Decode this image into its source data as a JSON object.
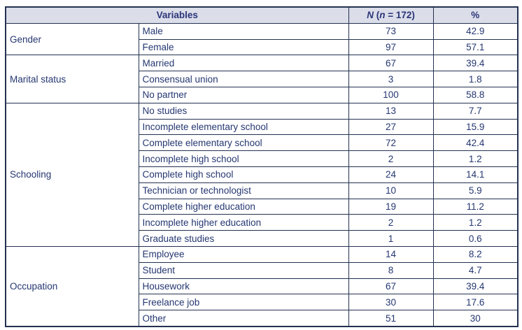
{
  "table": {
    "header": {
      "variables": "Variables",
      "n_symbol": "N",
      "n_paren_open": " (",
      "n_inner_symbol": "n",
      "n_equals_value": " = 172)",
      "pct": "%"
    },
    "groups": [
      {
        "label": "Gender",
        "rows": [
          [
            "Male",
            "73",
            "42.9"
          ],
          [
            "Female",
            "97",
            "57.1"
          ]
        ]
      },
      {
        "label": "Marital status",
        "rows": [
          [
            "Married",
            "67",
            "39.4"
          ],
          [
            "Consensual union",
            "3",
            "1.8"
          ],
          [
            "No partner",
            "100",
            "58.8"
          ]
        ]
      },
      {
        "label": "Schooling",
        "rows": [
          [
            "No studies",
            "13",
            "7.7"
          ],
          [
            "Incomplete elementary school",
            "27",
            "15.9"
          ],
          [
            "Complete elementary school",
            "72",
            "42.4"
          ],
          [
            "Incomplete high school",
            "2",
            "1.2"
          ],
          [
            "Complete high school",
            "24",
            "14.1"
          ],
          [
            "Technician or technologist",
            "10",
            "5.9"
          ],
          [
            "Complete higher education",
            "19",
            "11.2"
          ],
          [
            "Incomplete higher education",
            "2",
            "1.2"
          ],
          [
            "Graduate studies",
            "1",
            "0.6"
          ]
        ]
      },
      {
        "label": "Occupation",
        "rows": [
          [
            "Employee",
            "14",
            "8.2"
          ],
          [
            "Student",
            "8",
            "4.7"
          ],
          [
            "Housework",
            "67",
            "39.4"
          ],
          [
            "Freelance job",
            "30",
            "17.6"
          ],
          [
            "Other",
            "51",
            "30"
          ]
        ]
      }
    ]
  },
  "colors": {
    "header_bg": "#dbdde9",
    "text_navy": "#253771",
    "border_navy": "#233150"
  }
}
